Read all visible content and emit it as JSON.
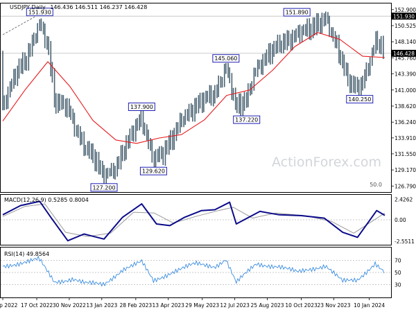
{
  "chart_data": {
    "type": "candlestick",
    "header": {
      "symbol_label": "USDJPY,Daily",
      "ohlc": "146.436 146.511 146.237 146.428"
    },
    "watermark": "ActionForex.com",
    "colors": {
      "candle": "#4a6272",
      "sma": "#e8191c",
      "macd_line": "#0b0b8a",
      "macd_signal": "#9a9a9a",
      "rsi": "#3c8de0",
      "label_border": "#1e1eb4",
      "grid": "#b8b8b8",
      "last_price_box": "#000000"
    },
    "price_panel": {
      "y_range": [
        126.0,
        153.7
      ],
      "y_ticks": [
        "152.900",
        "150.525",
        "148.140",
        "145.760",
        "143.390",
        "141.000",
        "138.620",
        "136.240",
        "133.910",
        "131.550",
        "129.170",
        "126.790"
      ],
      "current_price": "146.428",
      "upper_level": "151.930",
      "fib_label": "50.0",
      "indicators": [
        "55-day SMA"
      ],
      "annotations": [
        {
          "text": "151.930",
          "value": 151.93,
          "x": "2022-10-21",
          "place": "above"
        },
        {
          "text": "127.200",
          "value": 127.2,
          "x": "2023-01-16",
          "place": "below"
        },
        {
          "text": "137.900",
          "value": 137.9,
          "x": "2023-03-08",
          "place": "above"
        },
        {
          "text": "129.620",
          "value": 129.62,
          "x": "2023-03-24",
          "place": "below"
        },
        {
          "text": "145.060",
          "value": 145.06,
          "x": "2023-06-30",
          "place": "above"
        },
        {
          "text": "137.220",
          "value": 137.22,
          "x": "2023-07-28",
          "place": "below"
        },
        {
          "text": "151.890",
          "value": 151.89,
          "x": "2023-10-04",
          "place": "above"
        },
        {
          "text": "140.250",
          "value": 140.25,
          "x": "2023-12-28",
          "place": "below"
        }
      ]
    },
    "macd_panel": {
      "label": "MACD(12,26,9) 0.5285 0.8004",
      "y_range": [
        -2.9,
        2.9
      ],
      "y_ticks": [
        "2.4262",
        "0.00",
        "-2.5511"
      ],
      "zero_line": 0
    },
    "rsi_panel": {
      "label": "RSI(14) 49.8564",
      "y_range": [
        10,
        90
      ],
      "y_ticks": [
        "70",
        "50",
        "30"
      ],
      "levels": [
        70,
        50,
        30
      ]
    },
    "x_axis": {
      "tick_labels": [
        "1 Sep 2022",
        "17 Oct 2022",
        "30 Nov 2022",
        "13 Jan 2023",
        "28 Feb 2023",
        "13 Apr 2023",
        "29 May 2023",
        "12 Jul 2023",
        "25 Aug 2023",
        "10 Oct 2023",
        "23 Nov 2023",
        "10 Jan 2024"
      ],
      "tick_dates": [
        "2022-09-01",
        "2022-10-17",
        "2022-11-30",
        "2023-01-13",
        "2023-02-28",
        "2023-04-13",
        "2023-05-29",
        "2023-07-12",
        "2023-08-25",
        "2023-10-10",
        "2023-11-23",
        "2024-01-10"
      ]
    },
    "price_path": [
      {
        "x": "2022-09-01",
        "y": 138.8
      },
      {
        "x": "2022-09-22",
        "y": 144.0
      },
      {
        "x": "2022-10-03",
        "y": 145.6
      },
      {
        "x": "2022-10-21",
        "y": 150.9
      },
      {
        "x": "2022-11-01",
        "y": 147.8
      },
      {
        "x": "2022-11-11",
        "y": 139.0
      },
      {
        "x": "2022-11-28",
        "y": 138.5
      },
      {
        "x": "2022-12-20",
        "y": 132.5
      },
      {
        "x": "2023-01-03",
        "y": 131.0
      },
      {
        "x": "2023-01-16",
        "y": 128.2
      },
      {
        "x": "2023-02-01",
        "y": 129.5
      },
      {
        "x": "2023-02-10",
        "y": 131.8
      },
      {
        "x": "2023-03-08",
        "y": 137.0
      },
      {
        "x": "2023-03-24",
        "y": 130.8
      },
      {
        "x": "2023-04-05",
        "y": 131.4
      },
      {
        "x": "2023-04-20",
        "y": 134.2
      },
      {
        "x": "2023-05-02",
        "y": 136.8
      },
      {
        "x": "2023-05-22",
        "y": 138.8
      },
      {
        "x": "2023-06-15",
        "y": 140.5
      },
      {
        "x": "2023-06-30",
        "y": 144.4
      },
      {
        "x": "2023-07-14",
        "y": 138.4
      },
      {
        "x": "2023-07-28",
        "y": 139.6
      },
      {
        "x": "2023-08-10",
        "y": 144.2
      },
      {
        "x": "2023-08-28",
        "y": 146.5
      },
      {
        "x": "2023-09-15",
        "y": 147.9
      },
      {
        "x": "2023-10-04",
        "y": 149.4
      },
      {
        "x": "2023-10-20",
        "y": 149.9
      },
      {
        "x": "2023-11-13",
        "y": 151.5
      },
      {
        "x": "2023-11-28",
        "y": 147.4
      },
      {
        "x": "2023-12-14",
        "y": 141.8
      },
      {
        "x": "2023-12-28",
        "y": 141.2
      },
      {
        "x": "2024-01-08",
        "y": 144.4
      },
      {
        "x": "2024-01-19",
        "y": 148.1
      },
      {
        "x": "2024-01-26",
        "y": 147.6
      },
      {
        "x": "2024-01-31",
        "y": 146.4
      }
    ],
    "sma_path": [
      {
        "x": "2022-09-01",
        "y": 136.4
      },
      {
        "x": "2022-10-01",
        "y": 141.0
      },
      {
        "x": "2022-11-01",
        "y": 145.2
      },
      {
        "x": "2022-12-01",
        "y": 141.5
      },
      {
        "x": "2023-01-01",
        "y": 136.5
      },
      {
        "x": "2023-02-01",
        "y": 133.6
      },
      {
        "x": "2023-03-01",
        "y": 133.1
      },
      {
        "x": "2023-04-01",
        "y": 133.9
      },
      {
        "x": "2023-05-01",
        "y": 134.4
      },
      {
        "x": "2023-06-01",
        "y": 136.6
      },
      {
        "x": "2023-07-01",
        "y": 140.2
      },
      {
        "x": "2023-08-01",
        "y": 141.0
      },
      {
        "x": "2023-09-01",
        "y": 143.9
      },
      {
        "x": "2023-10-01",
        "y": 147.4
      },
      {
        "x": "2023-11-01",
        "y": 149.5
      },
      {
        "x": "2023-12-01",
        "y": 148.5
      },
      {
        "x": "2024-01-01",
        "y": 146.0
      },
      {
        "x": "2024-01-31",
        "y": 145.8
      }
    ],
    "macd_path": [
      {
        "x": "2022-09-01",
        "y": 0.6
      },
      {
        "x": "2022-09-25",
        "y": 1.7
      },
      {
        "x": "2022-10-21",
        "y": 2.2
      },
      {
        "x": "2022-11-05",
        "y": 0.3
      },
      {
        "x": "2022-11-28",
        "y": -2.5
      },
      {
        "x": "2022-12-20",
        "y": -1.7
      },
      {
        "x": "2023-01-16",
        "y": -2.3
      },
      {
        "x": "2023-02-10",
        "y": 0.3
      },
      {
        "x": "2023-03-08",
        "y": 1.9
      },
      {
        "x": "2023-03-28",
        "y": -0.5
      },
      {
        "x": "2023-04-15",
        "y": -0.7
      },
      {
        "x": "2023-05-05",
        "y": 0.3
      },
      {
        "x": "2023-05-28",
        "y": 1.1
      },
      {
        "x": "2023-06-15",
        "y": 1.2
      },
      {
        "x": "2023-07-05",
        "y": 2.1
      },
      {
        "x": "2023-07-14",
        "y": -0.5
      },
      {
        "x": "2023-08-15",
        "y": 1.0
      },
      {
        "x": "2023-09-10",
        "y": 0.6
      },
      {
        "x": "2023-10-10",
        "y": 0.5
      },
      {
        "x": "2023-11-10",
        "y": 0.2
      },
      {
        "x": "2023-12-05",
        "y": -1.5
      },
      {
        "x": "2023-12-25",
        "y": -2.1
      },
      {
        "x": "2024-01-20",
        "y": 1.1
      },
      {
        "x": "2024-01-31",
        "y": 0.53
      }
    ],
    "macd_signal_path": [
      {
        "x": "2022-09-01",
        "y": 0.4
      },
      {
        "x": "2022-10-01",
        "y": 1.6
      },
      {
        "x": "2022-10-28",
        "y": 1.9
      },
      {
        "x": "2022-11-25",
        "y": -1.5
      },
      {
        "x": "2022-12-25",
        "y": -2.0
      },
      {
        "x": "2023-01-25",
        "y": -1.6
      },
      {
        "x": "2023-02-25",
        "y": 0.9
      },
      {
        "x": "2023-03-25",
        "y": 0.8
      },
      {
        "x": "2023-04-20",
        "y": -0.4
      },
      {
        "x": "2023-05-20",
        "y": 0.4
      },
      {
        "x": "2023-06-20",
        "y": 1.1
      },
      {
        "x": "2023-07-10",
        "y": 1.5
      },
      {
        "x": "2023-08-05",
        "y": 0.2
      },
      {
        "x": "2023-09-05",
        "y": 0.8
      },
      {
        "x": "2023-10-15",
        "y": 0.5
      },
      {
        "x": "2023-11-20",
        "y": -0.2
      },
      {
        "x": "2023-12-20",
        "y": -1.6
      },
      {
        "x": "2024-01-10",
        "y": -0.4
      },
      {
        "x": "2024-01-31",
        "y": 0.8
      }
    ],
    "rsi_path": [
      {
        "x": "2022-09-01",
        "y": 60
      },
      {
        "x": "2022-09-25",
        "y": 66
      },
      {
        "x": "2022-10-20",
        "y": 72
      },
      {
        "x": "2022-11-10",
        "y": 34
      },
      {
        "x": "2022-12-05",
        "y": 40
      },
      {
        "x": "2022-12-22",
        "y": 32
      },
      {
        "x": "2023-01-16",
        "y": 30
      },
      {
        "x": "2023-02-10",
        "y": 55
      },
      {
        "x": "2023-03-08",
        "y": 67
      },
      {
        "x": "2023-03-24",
        "y": 36
      },
      {
        "x": "2023-04-20",
        "y": 52
      },
      {
        "x": "2023-05-20",
        "y": 64
      },
      {
        "x": "2023-06-15",
        "y": 60
      },
      {
        "x": "2023-06-30",
        "y": 72
      },
      {
        "x": "2023-07-14",
        "y": 33
      },
      {
        "x": "2023-08-10",
        "y": 64
      },
      {
        "x": "2023-09-10",
        "y": 60
      },
      {
        "x": "2023-10-05",
        "y": 50
      },
      {
        "x": "2023-11-12",
        "y": 62
      },
      {
        "x": "2023-12-05",
        "y": 35
      },
      {
        "x": "2023-12-25",
        "y": 37
      },
      {
        "x": "2024-01-18",
        "y": 66
      },
      {
        "x": "2024-01-31",
        "y": 50
      }
    ]
  }
}
